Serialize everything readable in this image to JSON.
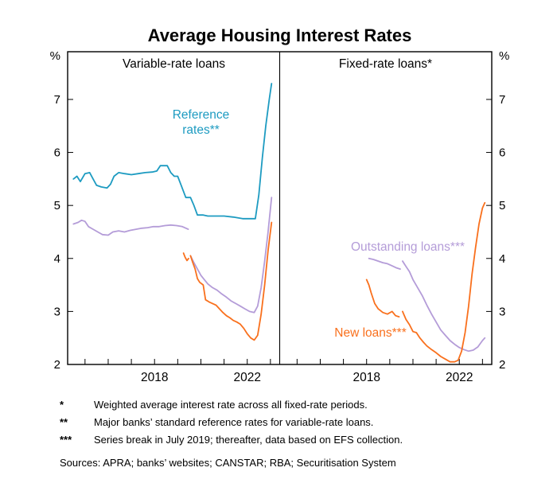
{
  "chart_data": {
    "type": "line",
    "title": "Average Housing Interest Rates",
    "y_unit": "%",
    "ylim": [
      2,
      7.9
    ],
    "y_ticks": [
      2,
      3,
      4,
      5,
      6,
      7
    ],
    "x_domain": [
      2014.25,
      2023.4
    ],
    "x_year_ticks": [
      2015,
      2016,
      2017,
      2018,
      2019,
      2020,
      2021,
      2022,
      2023
    ],
    "x_labeled_ticks": [
      2018,
      2022
    ],
    "grid": false,
    "legend": "in-plot colored annotations",
    "panels": [
      {
        "label": "Variable-rate loans",
        "series": [
          {
            "name": "Reference rates**",
            "color": "#1d9bc1",
            "segments": [
              [
                [
                  2014.5,
                  5.5
                ],
                [
                  2014.65,
                  5.55
                ],
                [
                  2014.8,
                  5.45
                ],
                [
                  2015.0,
                  5.6
                ],
                [
                  2015.2,
                  5.62
                ],
                [
                  2015.35,
                  5.5
                ],
                [
                  2015.5,
                  5.38
                ],
                [
                  2015.7,
                  5.35
                ],
                [
                  2015.95,
                  5.33
                ],
                [
                  2016.1,
                  5.4
                ],
                [
                  2016.25,
                  5.55
                ],
                [
                  2016.45,
                  5.62
                ],
                [
                  2016.7,
                  5.6
                ],
                [
                  2017.0,
                  5.58
                ],
                [
                  2017.3,
                  5.6
                ],
                [
                  2017.6,
                  5.62
                ],
                [
                  2017.9,
                  5.63
                ],
                [
                  2018.1,
                  5.65
                ],
                [
                  2018.25,
                  5.75
                ],
                [
                  2018.55,
                  5.75
                ],
                [
                  2018.7,
                  5.62
                ],
                [
                  2018.85,
                  5.55
                ],
                [
                  2019.0,
                  5.55
                ],
                [
                  2019.15,
                  5.38
                ],
                [
                  2019.35,
                  5.15
                ],
                [
                  2019.55,
                  5.15
                ],
                [
                  2019.7,
                  5.0
                ],
                [
                  2019.85,
                  4.82
                ],
                [
                  2020.1,
                  4.82
                ],
                [
                  2020.3,
                  4.8
                ],
                [
                  2020.6,
                  4.8
                ],
                [
                  2021.0,
                  4.8
                ],
                [
                  2021.4,
                  4.78
                ],
                [
                  2021.8,
                  4.75
                ],
                [
                  2022.1,
                  4.75
                ],
                [
                  2022.35,
                  4.75
                ],
                [
                  2022.5,
                  5.2
                ],
                [
                  2022.65,
                  5.9
                ],
                [
                  2022.8,
                  6.5
                ],
                [
                  2022.95,
                  7.0
                ],
                [
                  2023.05,
                  7.3
                ]
              ]
            ]
          },
          {
            "name": "Outstanding loans***",
            "color": "#b49cd8",
            "segments": [
              [
                [
                  2014.5,
                  4.65
                ],
                [
                  2014.7,
                  4.68
                ],
                [
                  2014.85,
                  4.72
                ],
                [
                  2015.0,
                  4.7
                ],
                [
                  2015.15,
                  4.6
                ],
                [
                  2015.35,
                  4.55
                ],
                [
                  2015.55,
                  4.5
                ],
                [
                  2015.75,
                  4.45
                ],
                [
                  2016.0,
                  4.44
                ],
                [
                  2016.2,
                  4.5
                ],
                [
                  2016.45,
                  4.52
                ],
                [
                  2016.7,
                  4.5
                ],
                [
                  2016.95,
                  4.53
                ],
                [
                  2017.2,
                  4.55
                ],
                [
                  2017.45,
                  4.57
                ],
                [
                  2017.7,
                  4.58
                ],
                [
                  2017.95,
                  4.6
                ],
                [
                  2018.2,
                  4.6
                ],
                [
                  2018.45,
                  4.62
                ],
                [
                  2018.7,
                  4.63
                ],
                [
                  2018.95,
                  4.62
                ],
                [
                  2019.2,
                  4.6
                ],
                [
                  2019.45,
                  4.55
                ]
              ],
              [
                [
                  2019.55,
                  4.05
                ],
                [
                  2019.7,
                  3.92
                ],
                [
                  2019.85,
                  3.8
                ],
                [
                  2020.0,
                  3.68
                ],
                [
                  2020.15,
                  3.6
                ],
                [
                  2020.3,
                  3.52
                ],
                [
                  2020.5,
                  3.45
                ],
                [
                  2020.7,
                  3.4
                ],
                [
                  2020.9,
                  3.33
                ],
                [
                  2021.1,
                  3.27
                ],
                [
                  2021.3,
                  3.2
                ],
                [
                  2021.5,
                  3.15
                ],
                [
                  2021.7,
                  3.1
                ],
                [
                  2021.9,
                  3.05
                ],
                [
                  2022.1,
                  3.0
                ],
                [
                  2022.3,
                  2.98
                ],
                [
                  2022.45,
                  3.1
                ],
                [
                  2022.6,
                  3.45
                ],
                [
                  2022.75,
                  3.95
                ],
                [
                  2022.9,
                  4.5
                ],
                [
                  2023.05,
                  5.15
                ]
              ]
            ]
          },
          {
            "name": "New loans***",
            "color": "#f9701d",
            "segments": [
              [
                [
                  2019.25,
                  4.1
                ],
                [
                  2019.32,
                  4.02
                ],
                [
                  2019.4,
                  3.96
                ],
                [
                  2019.47,
                  4.0
                ]
              ],
              [
                [
                  2019.55,
                  4.05
                ],
                [
                  2019.65,
                  3.92
                ],
                [
                  2019.75,
                  3.8
                ],
                [
                  2019.85,
                  3.62
                ],
                [
                  2019.95,
                  3.55
                ],
                [
                  2020.1,
                  3.5
                ],
                [
                  2020.2,
                  3.22
                ],
                [
                  2020.35,
                  3.18
                ],
                [
                  2020.5,
                  3.15
                ],
                [
                  2020.65,
                  3.12
                ],
                [
                  2020.8,
                  3.05
                ],
                [
                  2020.95,
                  2.98
                ],
                [
                  2021.1,
                  2.92
                ],
                [
                  2021.25,
                  2.88
                ],
                [
                  2021.4,
                  2.83
                ],
                [
                  2021.55,
                  2.8
                ],
                [
                  2021.7,
                  2.76
                ],
                [
                  2021.85,
                  2.68
                ],
                [
                  2022.0,
                  2.58
                ],
                [
                  2022.15,
                  2.5
                ],
                [
                  2022.3,
                  2.46
                ],
                [
                  2022.45,
                  2.55
                ],
                [
                  2022.6,
                  2.95
                ],
                [
                  2022.75,
                  3.5
                ],
                [
                  2022.9,
                  4.15
                ],
                [
                  2023.05,
                  4.68
                ]
              ]
            ]
          }
        ]
      },
      {
        "label": "Fixed-rate loans*",
        "series": [
          {
            "name": "Outstanding loans***",
            "color": "#b49cd8",
            "segments": [
              [
                [
                  2018.1,
                  4.0
                ],
                [
                  2018.3,
                  3.98
                ],
                [
                  2018.5,
                  3.95
                ],
                [
                  2018.7,
                  3.92
                ],
                [
                  2018.9,
                  3.9
                ],
                [
                  2019.1,
                  3.86
                ],
                [
                  2019.3,
                  3.82
                ],
                [
                  2019.45,
                  3.8
                ]
              ],
              [
                [
                  2019.55,
                  3.95
                ],
                [
                  2019.7,
                  3.85
                ],
                [
                  2019.85,
                  3.75
                ],
                [
                  2020.0,
                  3.6
                ],
                [
                  2020.2,
                  3.45
                ],
                [
                  2020.4,
                  3.3
                ],
                [
                  2020.6,
                  3.12
                ],
                [
                  2020.8,
                  2.95
                ],
                [
                  2021.0,
                  2.8
                ],
                [
                  2021.2,
                  2.65
                ],
                [
                  2021.4,
                  2.55
                ],
                [
                  2021.6,
                  2.45
                ],
                [
                  2021.8,
                  2.38
                ],
                [
                  2022.0,
                  2.32
                ],
                [
                  2022.2,
                  2.28
                ],
                [
                  2022.4,
                  2.25
                ],
                [
                  2022.6,
                  2.27
                ],
                [
                  2022.8,
                  2.33
                ],
                [
                  2023.0,
                  2.45
                ],
                [
                  2023.1,
                  2.5
                ]
              ]
            ]
          },
          {
            "name": "New loans***",
            "color": "#f9701d",
            "segments": [
              [
                [
                  2018.0,
                  3.6
                ],
                [
                  2018.1,
                  3.5
                ],
                [
                  2018.2,
                  3.35
                ],
                [
                  2018.35,
                  3.15
                ],
                [
                  2018.5,
                  3.05
                ],
                [
                  2018.7,
                  2.98
                ],
                [
                  2018.9,
                  2.95
                ],
                [
                  2019.1,
                  3.0
                ],
                [
                  2019.25,
                  2.92
                ],
                [
                  2019.4,
                  2.9
                ]
              ],
              [
                [
                  2019.55,
                  3.0
                ],
                [
                  2019.7,
                  2.85
                ],
                [
                  2019.85,
                  2.75
                ],
                [
                  2020.0,
                  2.62
                ],
                [
                  2020.15,
                  2.6
                ],
                [
                  2020.3,
                  2.5
                ],
                [
                  2020.45,
                  2.42
                ],
                [
                  2020.6,
                  2.35
                ],
                [
                  2020.8,
                  2.28
                ],
                [
                  2021.0,
                  2.22
                ],
                [
                  2021.2,
                  2.15
                ],
                [
                  2021.4,
                  2.1
                ],
                [
                  2021.6,
                  2.05
                ],
                [
                  2021.8,
                  2.05
                ],
                [
                  2021.95,
                  2.08
                ],
                [
                  2022.1,
                  2.25
                ],
                [
                  2022.25,
                  2.6
                ],
                [
                  2022.4,
                  3.1
                ],
                [
                  2022.55,
                  3.7
                ],
                [
                  2022.7,
                  4.2
                ],
                [
                  2022.85,
                  4.65
                ],
                [
                  2023.0,
                  4.95
                ],
                [
                  2023.1,
                  5.05
                ]
              ]
            ]
          }
        ]
      }
    ]
  },
  "footnotes": [
    {
      "marker": "*",
      "text": "Weighted average interest rate across all fixed-rate periods."
    },
    {
      "marker": "**",
      "text": "Major banks’ standard reference rates for variable-rate loans."
    },
    {
      "marker": "***",
      "text": "Series break in July 2019; thereafter, data based on EFS collection."
    }
  ],
  "sources": "Sources: APRA; banks’ websites; CANSTAR; RBA; Securitisation System"
}
